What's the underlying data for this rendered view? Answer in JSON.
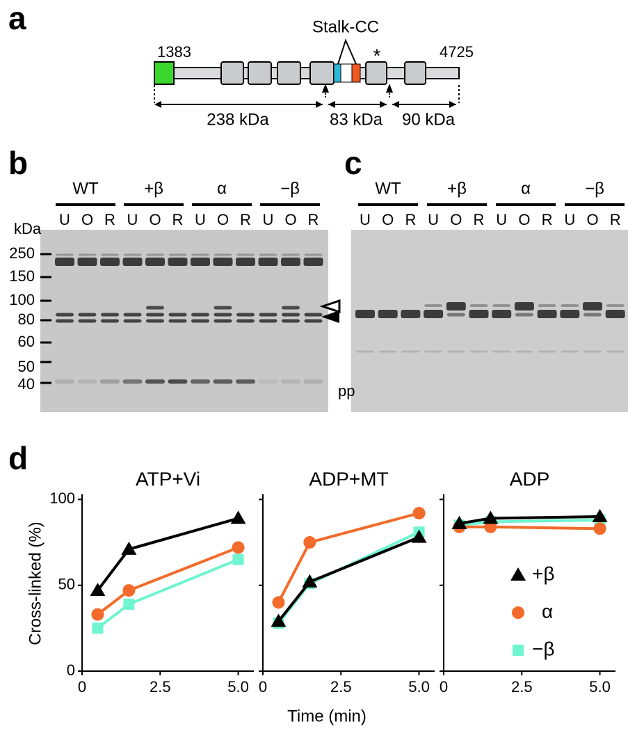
{
  "panels": [
    "a",
    "b",
    "c",
    "d"
  ],
  "domain_map": {
    "stalk": "Stalk-CC",
    "star": "*",
    "start": "1383",
    "end": "4725",
    "fragments": [
      "238 kDa",
      "83 kDa",
      "90 kDa"
    ]
  },
  "gels": {
    "groups": [
      "WT",
      "+β",
      "α",
      "−β"
    ],
    "lanes": [
      "U",
      "O",
      "R"
    ],
    "unit": "kDa",
    "markers": [
      "250",
      "150",
      "100",
      "80",
      "60",
      "50",
      "40"
    ],
    "product": "pp"
  },
  "chart_data": [
    {
      "type": "line",
      "title": "ATP+Vi",
      "ylabel": "Cross-linked (%)",
      "x": [
        0.5,
        1.5,
        5
      ],
      "xlim": [
        0,
        5.5
      ],
      "ylim": [
        0,
        103
      ],
      "xticks": [
        0,
        2.5,
        {
          "value": 5,
          "label": "5.0"
        }
      ],
      "yticks": [
        0,
        50,
        100
      ],
      "series": [
        {
          "name": "+β",
          "color": "#000000",
          "marker": "triangle",
          "values": [
            47,
            71,
            89
          ]
        },
        {
          "name": "α",
          "color": "#f26b2a",
          "marker": "circle",
          "values": [
            33,
            47,
            72
          ]
        },
        {
          "name": "−β",
          "color": "#6ff5d0",
          "marker": "square",
          "values": [
            25,
            39,
            65
          ]
        }
      ]
    },
    {
      "type": "line",
      "title": "ADP+MT",
      "xlabel": "Time (min)",
      "x": [
        0.5,
        1.5,
        5
      ],
      "xlim": [
        0,
        5.5
      ],
      "ylim": [
        0,
        103
      ],
      "xticks": [
        0,
        2.5,
        {
          "value": 5,
          "label": "5.0"
        }
      ],
      "yticks": [
        0,
        50,
        100
      ],
      "series": [
        {
          "name": "+β",
          "color": "#000000",
          "marker": "triangle",
          "values": [
            29,
            52,
            78
          ]
        },
        {
          "name": "α",
          "color": "#f26b2a",
          "marker": "circle",
          "values": [
            40,
            75,
            92
          ]
        },
        {
          "name": "−β",
          "color": "#6ff5d0",
          "marker": "square",
          "values": [
            28,
            51,
            81
          ]
        }
      ]
    },
    {
      "type": "line",
      "title": "ADP",
      "legend": "lower right",
      "x": [
        0.5,
        1.5,
        5
      ],
      "xlim": [
        0,
        5.5
      ],
      "ylim": [
        0,
        103
      ],
      "xticks": [
        0,
        2.5,
        {
          "value": 5,
          "label": "5.0"
        }
      ],
      "yticks": [
        0,
        50,
        100
      ],
      "series": [
        {
          "name": "+β",
          "color": "#000000",
          "marker": "triangle",
          "values": [
            86,
            89,
            90
          ]
        },
        {
          "name": "α",
          "color": "#f26b2a",
          "marker": "circle",
          "values": [
            84,
            84,
            83
          ]
        },
        {
          "name": "−β",
          "color": "#6ff5d0",
          "marker": "square",
          "values": [
            85,
            87,
            88
          ]
        }
      ]
    }
  ]
}
